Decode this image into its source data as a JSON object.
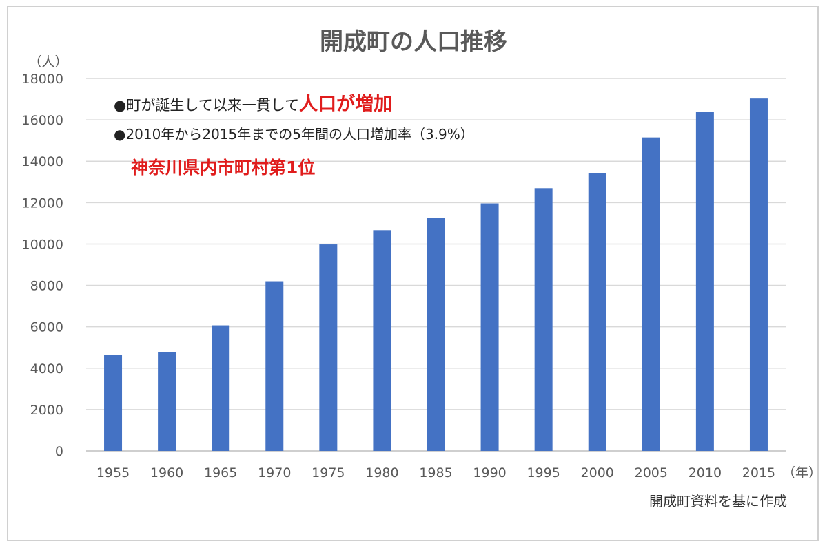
{
  "chart_data": {
    "type": "bar",
    "title": "開成町の人口推移",
    "ylabel": "（人）",
    "xlabel": "（年）",
    "categories": [
      "1955",
      "1960",
      "1965",
      "1970",
      "1975",
      "1980",
      "1985",
      "1990",
      "1995",
      "2000",
      "2005",
      "2010",
      "2015"
    ],
    "values": [
      4650,
      4780,
      6070,
      8200,
      9980,
      10670,
      11250,
      11960,
      12700,
      13430,
      15150,
      16400,
      17030
    ],
    "ylim": [
      0,
      18000
    ],
    "yticks": [
      "0",
      "2000",
      "4000",
      "6000",
      "8000",
      "10000",
      "12000",
      "14000",
      "16000",
      "18000"
    ],
    "grid": true,
    "bar_color": "#4472c4",
    "annotations": {
      "line1_prefix": "●町が誕生して以来一貫して",
      "line1_highlight": "人口が増加",
      "line2": "●2010年から2015年までの5年間の人口増加率（3.9%）",
      "line3_highlight": "神奈川県内市町村第1位"
    },
    "source": "開成町資料を基に作成",
    "highlight_color": "#e01c1c"
  }
}
